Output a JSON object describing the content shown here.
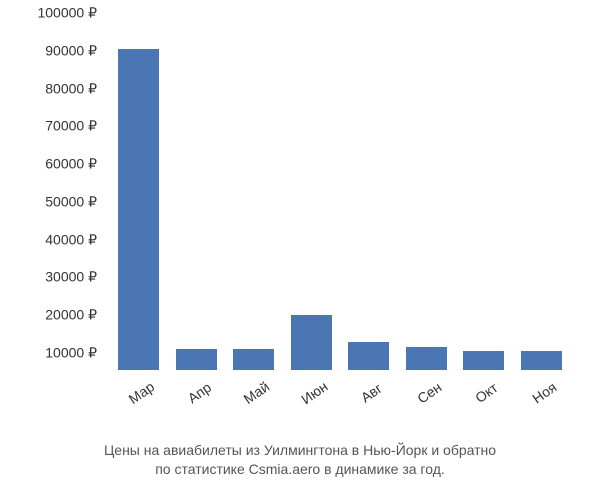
{
  "chart": {
    "type": "bar",
    "categories": [
      "Мар",
      "Апр",
      "Май",
      "Июн",
      "Авг",
      "Сен",
      "Окт",
      "Ноя"
    ],
    "values": [
      95000,
      15500,
      15500,
      24500,
      17500,
      16000,
      15000,
      15000
    ],
    "bar_color": "#4a77b4",
    "y_axis": {
      "min": 10000,
      "max": 100000,
      "tick_step": 10000,
      "tick_suffix": " ₽",
      "ticks": [
        10000,
        20000,
        30000,
        40000,
        50000,
        60000,
        70000,
        80000,
        90000,
        100000
      ]
    },
    "background_color": "#ffffff",
    "axis_label_fontsize": 14,
    "axis_label_color": "#333333",
    "x_label_rotation": -35
  },
  "caption": {
    "line1": "Цены на авиабилеты из Уилмингтона в Нью-Йорк и обратно",
    "line2": "по статистике Csmia.aero в динамике за год.",
    "fontsize": 14,
    "color": "#555555"
  }
}
